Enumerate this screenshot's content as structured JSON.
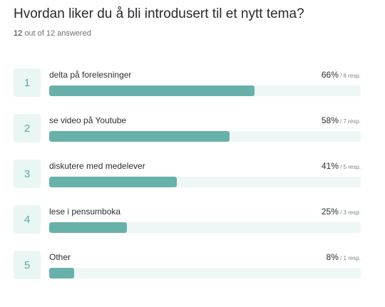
{
  "question": {
    "title": "Hvordan liker du å bli introdusert til et nytt tema?",
    "answered_count": "12",
    "answered_suffix": "out of 12 answered"
  },
  "colors": {
    "bar_fill": "#68b1ab",
    "bar_track": "#eef7f5",
    "index_box_bg": "#e9f6f4",
    "index_text": "#56aba5"
  },
  "options": [
    {
      "index": "1",
      "label": "delta på forelesninger",
      "percent_text": "66%",
      "resp_text": " / 8 resp.",
      "fraction": 0.66
    },
    {
      "index": "2",
      "label": "se video på Youtube",
      "percent_text": "58%",
      "resp_text": " / 7 resp.",
      "fraction": 0.58
    },
    {
      "index": "3",
      "label": "diskutere med medelever",
      "percent_text": "41%",
      "resp_text": " / 5 resp.",
      "fraction": 0.41
    },
    {
      "index": "4",
      "label": "lese i pensumboka",
      "percent_text": "25%",
      "resp_text": " / 3 resp.",
      "fraction": 0.25
    },
    {
      "index": "5",
      "label": "Other",
      "percent_text": "8%",
      "resp_text": " / 1 resp.",
      "fraction": 0.08
    }
  ]
}
